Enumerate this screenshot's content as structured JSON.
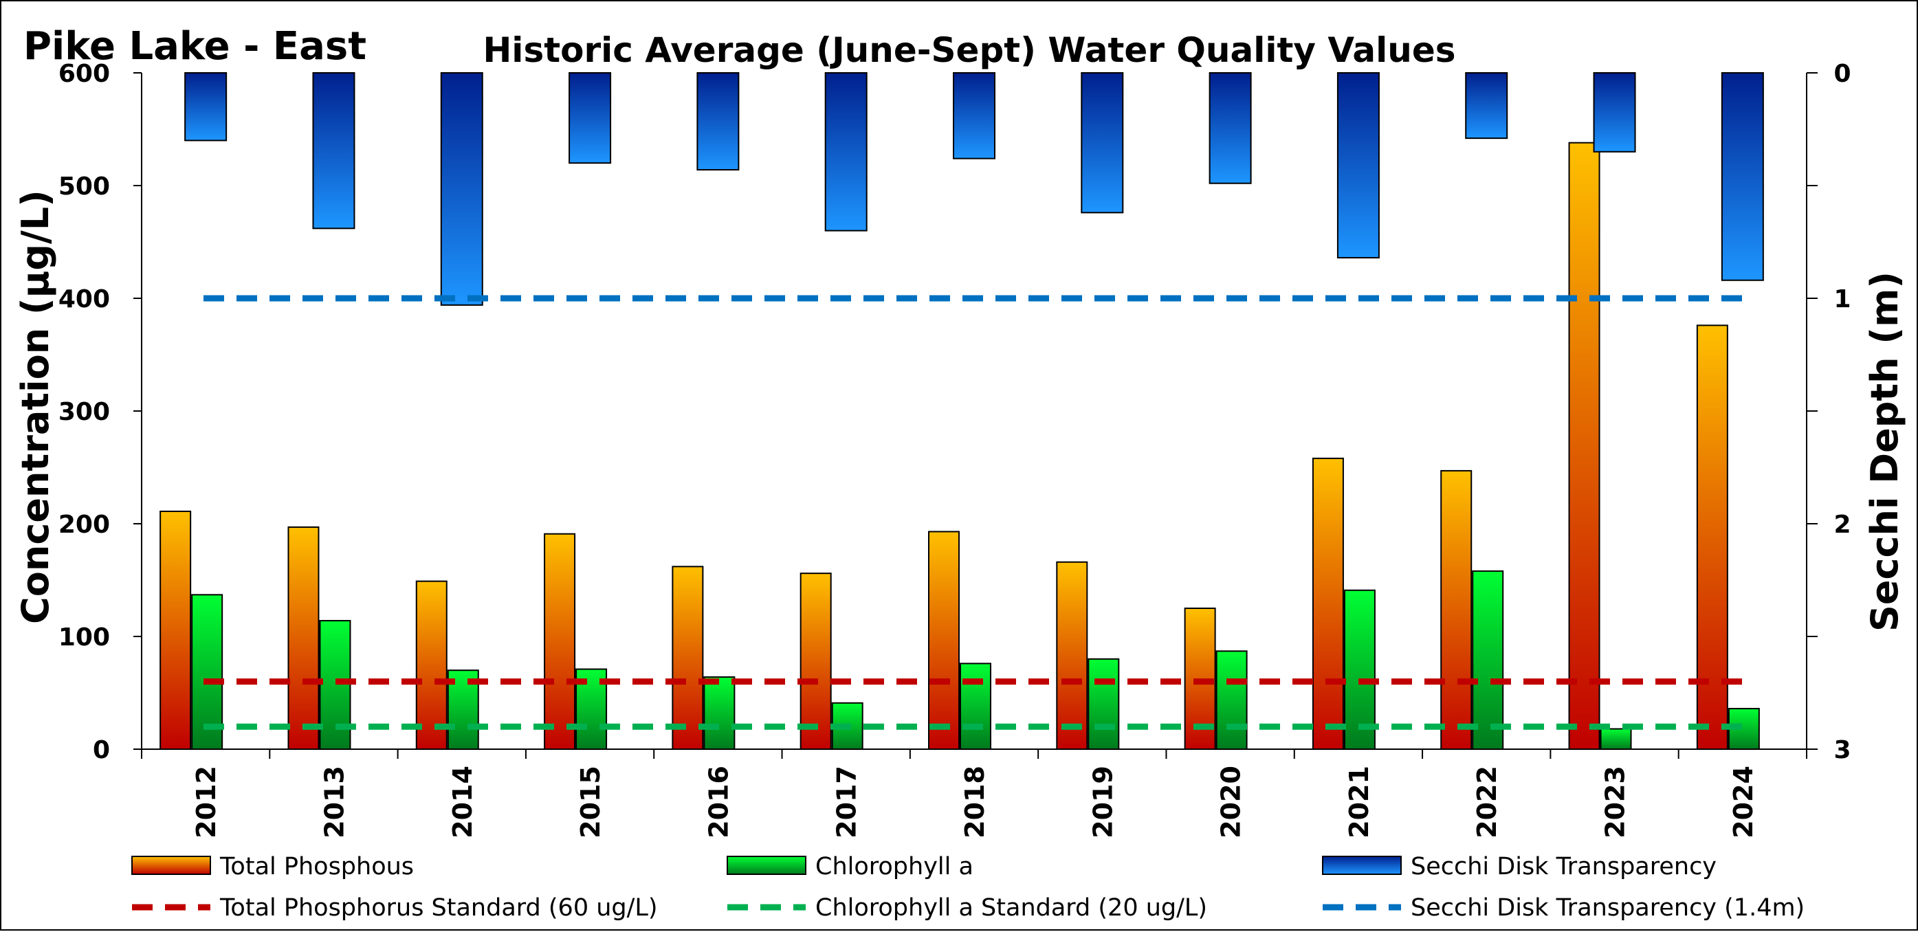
{
  "header": {
    "lake_name": "Pike Lake - East",
    "title": "Historic Average (June-Sept) Water Quality Values"
  },
  "chart_data": {
    "type": "bar",
    "categories": [
      "2012",
      "2013",
      "2014",
      "2015",
      "2016",
      "2017",
      "2018",
      "2019",
      "2020",
      "2021",
      "2022",
      "2023",
      "2024"
    ],
    "ylabel": "Concentration (µg/L)",
    "y2label": "Secchi Depth (m)",
    "ylim": [
      0,
      600
    ],
    "y2lim": [
      0,
      3
    ],
    "y2_inverted": true,
    "yticks": [
      "0",
      "100",
      "200",
      "300",
      "400",
      "500",
      "600"
    ],
    "y2ticks": [
      "0",
      "1",
      "2",
      "3"
    ],
    "series": [
      {
        "name": "Total Phosphous",
        "axis": "left",
        "values": [
          211,
          197,
          149,
          191,
          162,
          156,
          193,
          166,
          125,
          258,
          247,
          538,
          376
        ]
      },
      {
        "name": "Chlorophyll a",
        "axis": "left",
        "values": [
          137,
          114,
          70,
          71,
          64,
          41,
          76,
          80,
          87,
          141,
          158,
          18,
          36
        ]
      },
      {
        "name": "Secchi Disk Transparency",
        "axis": "right",
        "values": [
          0.3,
          0.69,
          1.03,
          0.4,
          0.43,
          0.7,
          0.38,
          0.62,
          0.49,
          0.82,
          0.29,
          0.35,
          0.92
        ]
      }
    ],
    "reference_lines": [
      {
        "name": "Total Phosphorus Standard (60 ug/L)",
        "axis": "left",
        "value": 60,
        "color": "#c00000"
      },
      {
        "name": "Chlorophyll a Standard (20 ug/L)",
        "axis": "left",
        "value": 20,
        "color": "#00b050"
      },
      {
        "name": "Secchi Disk Transparency (1.4m)",
        "axis": "left",
        "value": 400,
        "color": "#0070c0"
      }
    ],
    "legend_position": "bottom",
    "grid": false
  },
  "colors": {
    "tp_top": "#ffc000",
    "tp_bottom": "#c00000",
    "chl_top": "#00ff33",
    "chl_bottom": "#007a1e",
    "secchi_top": "#00208e",
    "secchi_bottom": "#1e96ff"
  }
}
